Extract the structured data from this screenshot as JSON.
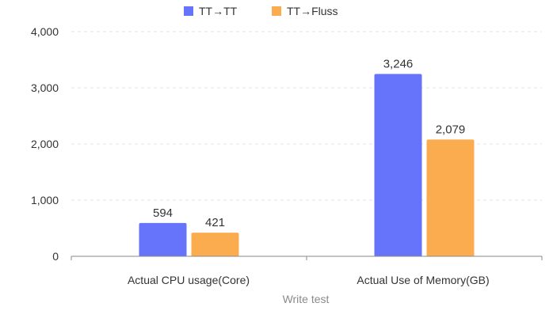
{
  "chart_data": {
    "type": "bar",
    "title": "",
    "xlabel": "Write test",
    "ylabel": "",
    "categories": [
      "Actual CPU usage(Core)",
      "Actual Use of Memory(GB)"
    ],
    "series": [
      {
        "name": "TT→TT",
        "values": [
          594,
          3246
        ],
        "labels": [
          "594",
          "3,246"
        ],
        "color": "#6673fb"
      },
      {
        "name": "TT→Fluss",
        "values": [
          421,
          2079
        ],
        "labels": [
          "421",
          "2,079"
        ],
        "color": "#fbac4f"
      }
    ],
    "ylim": [
      0,
      4000
    ],
    "yticks": [
      0,
      1000,
      2000,
      3000,
      4000
    ],
    "ytick_labels": [
      "0",
      "1,000",
      "2,000",
      "3,000",
      "4,000"
    ],
    "grid": true,
    "legend_position": "top-center"
  }
}
